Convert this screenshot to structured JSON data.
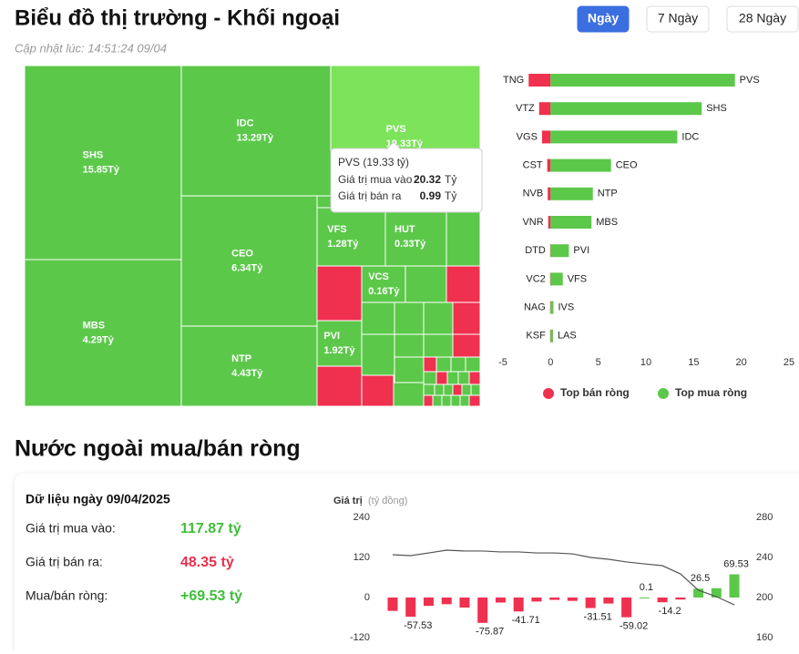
{
  "header": {
    "title": "Biểu đồ thị trường - Khối ngoại",
    "updated": "Cập nhật lúc: 14:51:24 09/04"
  },
  "tabs": [
    "Ngày",
    "7 Ngày",
    "28 Ngày"
  ],
  "section_title": "Nước ngoài mua/bán ròng",
  "summary": {
    "title": "Dữ liệu ngày 09/04/2025",
    "rows": [
      {
        "label": "Giá trị mua vào:",
        "value": "117.87 tỷ",
        "color": "#3fbf3a"
      },
      {
        "label": "Giá trị bán ra:",
        "value": "48.35 tỷ",
        "color": "#e8304e"
      },
      {
        "label": "Mua/bán ròng:",
        "value": "+69.53 tỷ",
        "color": "#3fbf3a"
      }
    ]
  },
  "chart_data": [
    {
      "type": "treemap",
      "categories": [
        "SHS",
        "IDC",
        "PVS",
        "MBS",
        "CEO",
        "NTP",
        "VFS",
        "HUT",
        "VCS",
        "PVI"
      ],
      "values": [
        15.85,
        13.29,
        19.33,
        4.29,
        6.34,
        4.43,
        1.28,
        0.33,
        0.16,
        1.92
      ],
      "value_labels": [
        "15.85Tỷ",
        "13.29Tỷ",
        "19.33Tỷ",
        "4.29Tỷ",
        "6.34Tỷ",
        "4.43Tỷ",
        "1.28Tỷ",
        "0.33Tỷ",
        "0.16Tỷ",
        "1.92Tỷ"
      ],
      "color": "#5cc84a",
      "highlight_color": "#7ce35a",
      "tooltip": {
        "title": "PVS (19.33 tỷ)",
        "rows": [
          {
            "label": "Giá trị mua vào",
            "value": "20.32",
            "unit": "Tỷ"
          },
          {
            "label": "Giá trị bán ra",
            "value": "0.99",
            "unit": "Tỷ"
          }
        ]
      }
    },
    {
      "type": "diverging-bar",
      "series": [
        {
          "name": "Top bán ròng",
          "color": "#f0304f",
          "categories": [
            "TNG",
            "VTZ",
            "VGS",
            "CST",
            "NVB",
            "VNR",
            "DTD",
            "VC2",
            "NAG",
            "KSF"
          ],
          "values": [
            -2.3,
            -1.2,
            -0.9,
            -0.35,
            -0.3,
            -0.25,
            -0.05,
            -0.05,
            -0.05,
            -0.05
          ]
        },
        {
          "name": "Top mua ròng",
          "color": "#5cc84a",
          "categories": [
            "PVS",
            "SHS",
            "IDC",
            "CEO",
            "NTP",
            "MBS",
            "PVI",
            "VFS",
            "IVS",
            "LAS"
          ],
          "values": [
            19.33,
            15.85,
            13.29,
            6.34,
            4.43,
            4.29,
            1.92,
            1.28,
            0.3,
            0.25
          ]
        }
      ],
      "xlim": [
        -5,
        25
      ],
      "xticks": [
        -5,
        0,
        5,
        10,
        15,
        20,
        25
      ]
    },
    {
      "type": "bar-line",
      "title": "Giá trị",
      "unit": "(tỷ đồng)",
      "series": [
        {
          "type": "bar",
          "color": "#5cc84a",
          "negative_color": "#f0304f",
          "values": [
            -40,
            -57.53,
            -25,
            -20,
            -30,
            -75.87,
            -15,
            -41.71,
            -12,
            -7,
            -10,
            -31.51,
            -18,
            -59.02,
            0.1,
            -14.2,
            -6,
            26.5,
            28,
            69.53
          ],
          "value_labels": [
            null,
            "-57.53",
            null,
            null,
            null,
            "-75.87",
            null,
            "-41.71",
            null,
            null,
            null,
            "-31.51",
            null,
            "-59.02",
            "0.1",
            "-14.2",
            null,
            "26.5",
            null,
            "69.53"
          ]
        },
        {
          "type": "line",
          "axis": "y2",
          "color": "#555555",
          "values": [
            242.7,
            241.8,
            244.5,
            247.3,
            246.4,
            246.4,
            245.5,
            245.5,
            244.5,
            244.5,
            243.6,
            240,
            238.2,
            235.5,
            233.6,
            231.8,
            223.6,
            207.3,
            200.9,
            192.7
          ]
        }
      ],
      "ylim": [
        -120,
        240
      ],
      "yticks": [
        -120,
        0,
        120,
        240
      ],
      "y2lim": [
        160,
        280
      ],
      "y2ticks": [
        160,
        200,
        240,
        280
      ]
    }
  ]
}
